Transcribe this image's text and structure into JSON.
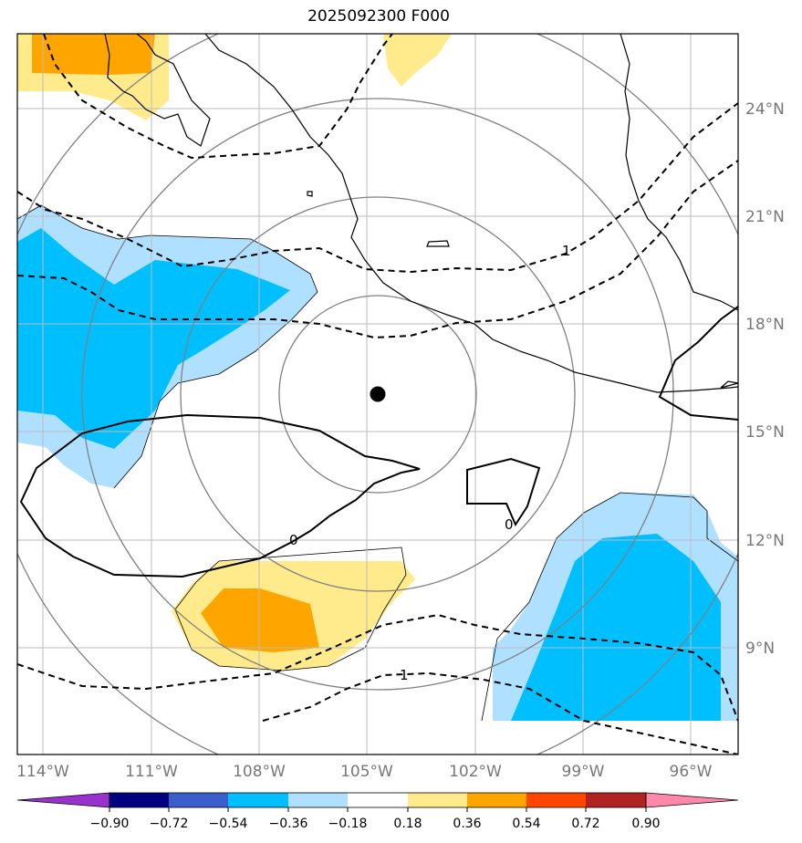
{
  "title": "2025092300 F000",
  "colors": {
    "level_neg_090": "#9932cc",
    "level_neg_072": "#000080",
    "level_neg_054": "#3a5fcd",
    "level_neg_036": "#00bfff",
    "level_neg_018": "#b0e0ff",
    "level_zero": "#ffffff",
    "level_pos_018": "#ffeb8c",
    "level_pos_036": "#ffa500",
    "level_pos_054": "#ff4500",
    "level_pos_072": "#b22222",
    "level_pos_090": "#ff88aa"
  },
  "map": {
    "lat_labels": [
      "24°N",
      "21°N",
      "18°N",
      "15°N",
      "12°N",
      "9°N"
    ],
    "lon_labels": [
      "114°W",
      "111°W",
      "108°W",
      "105°W",
      "102°W",
      "99°W",
      "96°W"
    ],
    "center_marker": {
      "lon": -104.7,
      "lat": 16.0
    },
    "contour_labels": [
      "1",
      "0",
      "0",
      "1"
    ]
  },
  "colorbar": {
    "labels": [
      "−0.90",
      "−0.72",
      "−0.54",
      "−0.36",
      "−0.18",
      "0.18",
      "0.36",
      "0.54",
      "0.72",
      "0.90"
    ]
  }
}
